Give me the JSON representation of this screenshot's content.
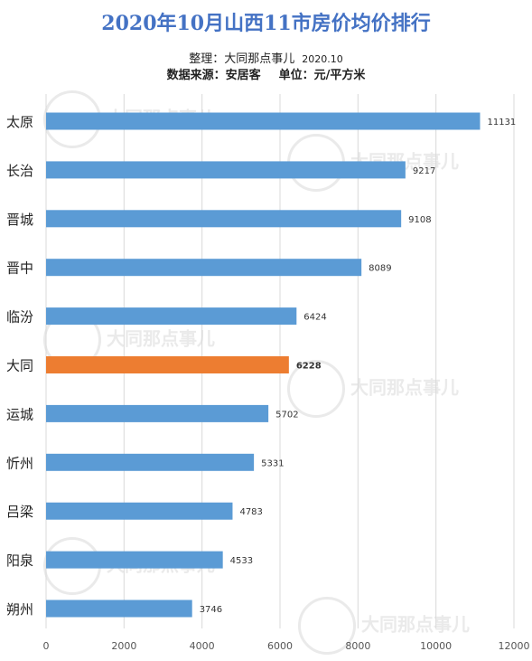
{
  "header": {
    "title": "2020年10月山西11市房价均价排行",
    "credit_label": "整理：大同那点事儿",
    "credit_date": "2020.10",
    "source_label": "数据来源：安居客",
    "unit_label": "单位：元/平方米"
  },
  "watermark_text": "大同那点事儿",
  "colors": {
    "bar": "#5b9bd5",
    "highlight": "#ed7d31",
    "grid": "#d9d9d9",
    "title": "#4472c4"
  },
  "chart_data": {
    "type": "bar",
    "orientation": "horizontal",
    "categories": [
      "太原",
      "长治",
      "晋城",
      "晋中",
      "临汾",
      "大同",
      "运城",
      "忻州",
      "吕梁",
      "阳泉",
      "朔州"
    ],
    "values": [
      11131,
      9217,
      9108,
      8089,
      6424,
      6228,
      5702,
      5331,
      4783,
      4533,
      3746
    ],
    "highlight_category": "大同",
    "xlim": [
      0,
      12000
    ],
    "xticks": [
      0,
      2000,
      4000,
      6000,
      8000,
      10000,
      12000
    ],
    "grid": "vertical",
    "title": "2020年10月山西11市房价均价排行"
  }
}
